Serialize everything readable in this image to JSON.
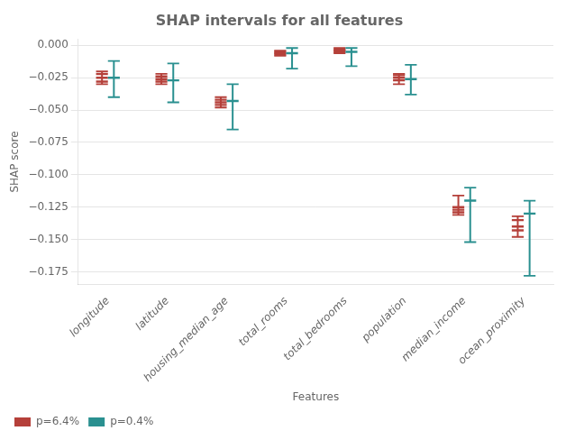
{
  "chart_data": {
    "type": "interval",
    "title": "SHAP intervals for all features",
    "xlabel": "Features",
    "ylabel": "SHAP score",
    "categories": [
      "longitude",
      "latitude",
      "housing_median_age",
      "total_rooms",
      "total_bedrooms",
      "population",
      "median_income",
      "ocean_proximity"
    ],
    "series": [
      {
        "name": "p=6.4%",
        "color": "#b5403a",
        "values": [
          -0.025,
          -0.026,
          -0.044,
          -0.006,
          -0.004,
          -0.025,
          -0.127,
          -0.14
        ],
        "q1": [
          -0.028,
          -0.028,
          -0.046,
          -0.007,
          -0.005,
          -0.027,
          -0.129,
          -0.143
        ],
        "q3": [
          -0.022,
          -0.024,
          -0.042,
          -0.005,
          -0.003,
          -0.023,
          -0.125,
          -0.135
        ],
        "lower": [
          -0.03,
          -0.03,
          -0.048,
          -0.008,
          -0.006,
          -0.03,
          -0.131,
          -0.148
        ],
        "upper": [
          -0.02,
          -0.022,
          -0.04,
          -0.004,
          -0.002,
          -0.022,
          -0.116,
          -0.132
        ]
      },
      {
        "name": "p=0.4%",
        "color": "#2a9090",
        "values": [
          -0.025,
          -0.027,
          -0.043,
          -0.006,
          -0.005,
          -0.026,
          -0.12,
          -0.13
        ],
        "lower": [
          -0.04,
          -0.044,
          -0.065,
          -0.018,
          -0.016,
          -0.038,
          -0.152,
          -0.178
        ],
        "upper": [
          -0.012,
          -0.014,
          -0.03,
          -0.002,
          -0.002,
          -0.015,
          -0.11,
          -0.12
        ]
      }
    ],
    "ylim": [
      -0.185,
      0.005
    ],
    "yticks": [
      {
        "value": 0.0,
        "label": "0.000"
      },
      {
        "value": -0.025,
        "label": "−0.025"
      },
      {
        "value": -0.05,
        "label": "−0.050"
      },
      {
        "value": -0.075,
        "label": "−0.075"
      },
      {
        "value": -0.1,
        "label": "−0.100"
      },
      {
        "value": -0.125,
        "label": "−0.125"
      },
      {
        "value": -0.15,
        "label": "−0.150"
      },
      {
        "value": -0.175,
        "label": "−0.175"
      }
    ],
    "grid": true,
    "legend": "lower left"
  }
}
